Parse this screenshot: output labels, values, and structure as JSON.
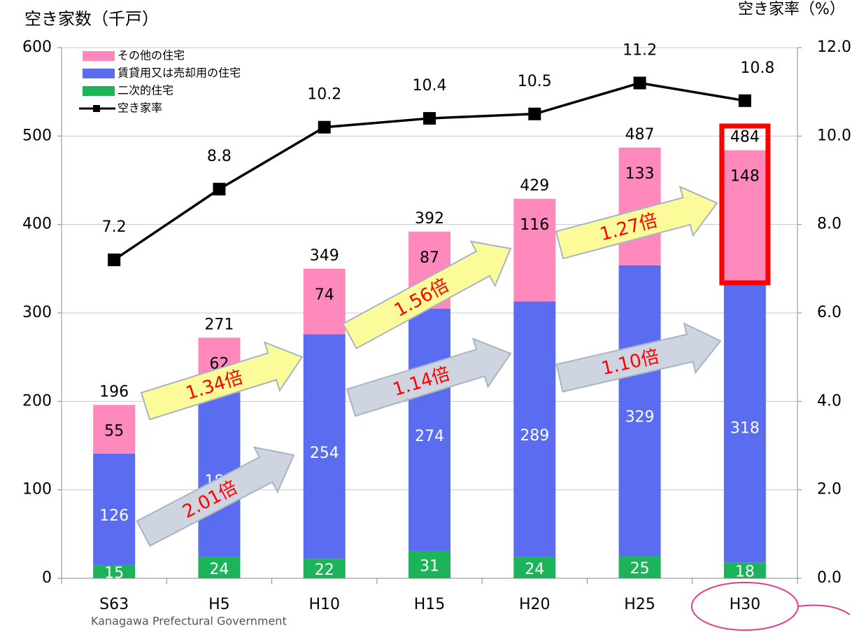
{
  "chart_data": {
    "type": "bar",
    "stacked": true,
    "ylabel": "空き家数（千戸）",
    "y2label": "空き家率（%）",
    "footer": "Kanagawa Prefectural Government",
    "categories": [
      "S63",
      "H5",
      "H10",
      "H15",
      "H20",
      "H25",
      "H30"
    ],
    "series": [
      {
        "name": "二次的住宅",
        "color": "#1db35a",
        "values": [
          15,
          24,
          22,
          31,
          24,
          25,
          18
        ]
      },
      {
        "name": "賃貸用又は売却用の住宅",
        "color": "#5a6cf0",
        "values": [
          126,
          186,
          254,
          274,
          289,
          329,
          318
        ]
      },
      {
        "name": "その他の住宅",
        "color": "#ff88bd",
        "values": [
          55,
          62,
          74,
          87,
          116,
          133,
          148
        ]
      },
      {
        "name": "空き家率",
        "type": "line",
        "axis": "y2",
        "color": "#000000",
        "values": [
          7.2,
          8.8,
          10.2,
          10.4,
          10.5,
          11.2,
          10.8
        ]
      }
    ],
    "totals": [
      196,
      271,
      349,
      392,
      429,
      487,
      484
    ],
    "annotations": [
      "2.01倍",
      "1.34倍",
      "1.56倍",
      "1.14倍",
      "1.27倍",
      "1.10倍"
    ],
    "ylim": [
      0,
      600
    ],
    "yticks": [
      0,
      100,
      200,
      300,
      400,
      500,
      600
    ],
    "y2lim": [
      0,
      12
    ],
    "y2ticks": [
      {
        "value": 0,
        "label": "0.0"
      },
      {
        "value": 2,
        "label": "2.0"
      },
      {
        "value": 4,
        "label": "4.0"
      },
      {
        "value": 6,
        "label": "6.0"
      },
      {
        "value": 8,
        "label": "8.0"
      },
      {
        "value": 10,
        "label": "10.0"
      },
      {
        "value": 12,
        "label": "12.0"
      }
    ]
  }
}
